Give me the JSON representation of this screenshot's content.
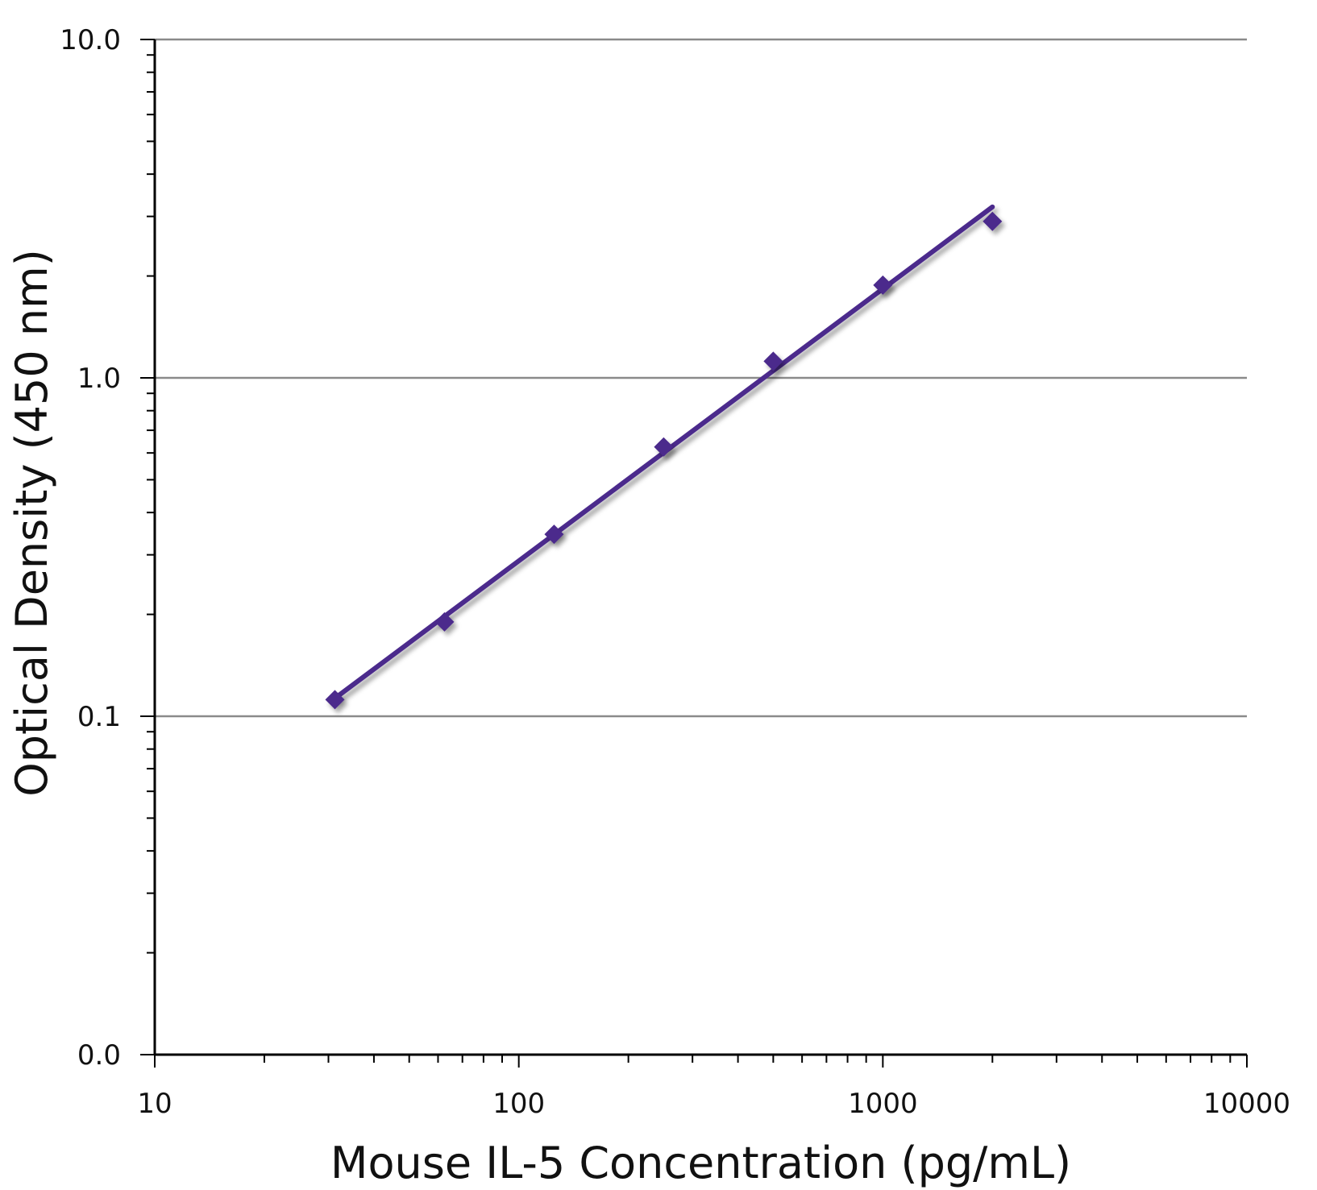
{
  "chart_data": {
    "type": "scatter",
    "xlabel": "Mouse IL-5 Concentration (pg/mL)",
    "ylabel": "Optical Density (450 nm)",
    "x_scale": "log",
    "y_scale": "log",
    "xlim": [
      10,
      10000
    ],
    "ylim": [
      0.01,
      10
    ],
    "x_tick_labels": [
      "10",
      "100",
      "1000",
      "10000"
    ],
    "x_tick_values": [
      10,
      100,
      1000,
      10000
    ],
    "y_tick_labels": [
      "10.0",
      "1.0",
      "0.1",
      "0.0"
    ],
    "y_tick_values": [
      10,
      1,
      0.1,
      0.01
    ],
    "grid": "horizontal major gridlines",
    "series": [
      {
        "points": [
          {
            "x": 31.25,
            "y": 0.112
          },
          {
            "x": 62.5,
            "y": 0.19
          },
          {
            "x": 125,
            "y": 0.345
          },
          {
            "x": 250,
            "y": 0.625
          },
          {
            "x": 500,
            "y": 1.12
          },
          {
            "x": 1000,
            "y": 1.88
          },
          {
            "x": 2000,
            "y": 2.9
          }
        ]
      }
    ],
    "fit_line": {
      "x": [
        31.25,
        2000
      ],
      "y": [
        0.113,
        3.2
      ]
    },
    "colors": {
      "marker": "#4b2a8c",
      "line": "#4b2a8c",
      "grid": "#8a8a8a",
      "axis": "#000000"
    }
  }
}
